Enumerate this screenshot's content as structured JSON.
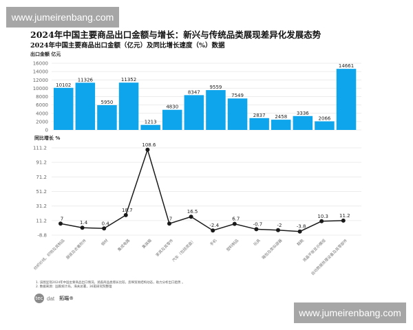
{
  "watermark": {
    "text": "www.jumeirenbang.com"
  },
  "header": {
    "title": "2024年中国主要商品出口金额与增长：新兴与传统品类展现差异化发展态势",
    "subtitle": "2024年中国主要商品出口金额（亿元）及同比增长速度（%）数据"
  },
  "bar_unit_label": "出口金额  亿元",
  "line_unit_label": "同比增长 %",
  "notes": [
    "1. 该图呈现2024年中国主要商品出口情况，涵盖商品类增长比较，反映贸易结构动态，助力分析出口趋势 。",
    "2. 数据来源：国家统计局，海关总署，36氪研究院整理"
  ],
  "logo": {
    "mark": "tec",
    "text": "dat",
    "cn": "拓端®"
  },
  "colors": {
    "bar": "#0ea5ec",
    "line": "#1a1a1a",
    "grid": "#ececec",
    "axis_text": "#666666"
  },
  "chart_data": [
    {
      "type": "bar",
      "title": "2024年中国主要商品出口金额（亿元）",
      "ylabel": "出口金额 亿元",
      "ylim": [
        0,
        16000
      ],
      "yticks": [
        0,
        2000,
        4000,
        6000,
        8000,
        10000,
        12000,
        14000,
        16000
      ],
      "categories": [
        "纺织纱线、织物及其制品",
        "服装及衣着附件",
        "钢材",
        "集成电路",
        "集装箱",
        "家具及其零件",
        "汽车（包括底盘）",
        "手机",
        "塑料制品",
        "玩具",
        "箱包及类似容器",
        "鞋靴",
        "液晶平板显示模组",
        "自动数据处理设备及其零部件"
      ],
      "values": [
        10102,
        11326,
        5950,
        11352,
        1213,
        4830,
        8347,
        9559,
        7549,
        2837,
        2458,
        3336,
        2066,
        14661
      ],
      "grid": true
    },
    {
      "type": "line",
      "title": "同比增长速度（%）",
      "ylabel": "同比增长 %",
      "ylim": [
        -8.8,
        111.2
      ],
      "yticks": [
        -8.8,
        11.2,
        31.2,
        51.2,
        71.2,
        91.2,
        111.2
      ],
      "categories": [
        "纺织纱线、织物及其制品",
        "服装及衣着附件",
        "钢材",
        "集成电路",
        "集装箱",
        "家具及其零件",
        "汽车（包括底盘）",
        "手机",
        "塑料制品",
        "玩具",
        "箱包及类似容器",
        "鞋靴",
        "液晶平板显示模组",
        "自动数据处理设备及其零部件"
      ],
      "values": [
        7,
        1.4,
        0.4,
        18.7,
        108.6,
        7,
        16.5,
        -2.4,
        6.7,
        -0.7,
        -2,
        -3.8,
        10.3,
        11.2
      ],
      "grid": true
    }
  ]
}
